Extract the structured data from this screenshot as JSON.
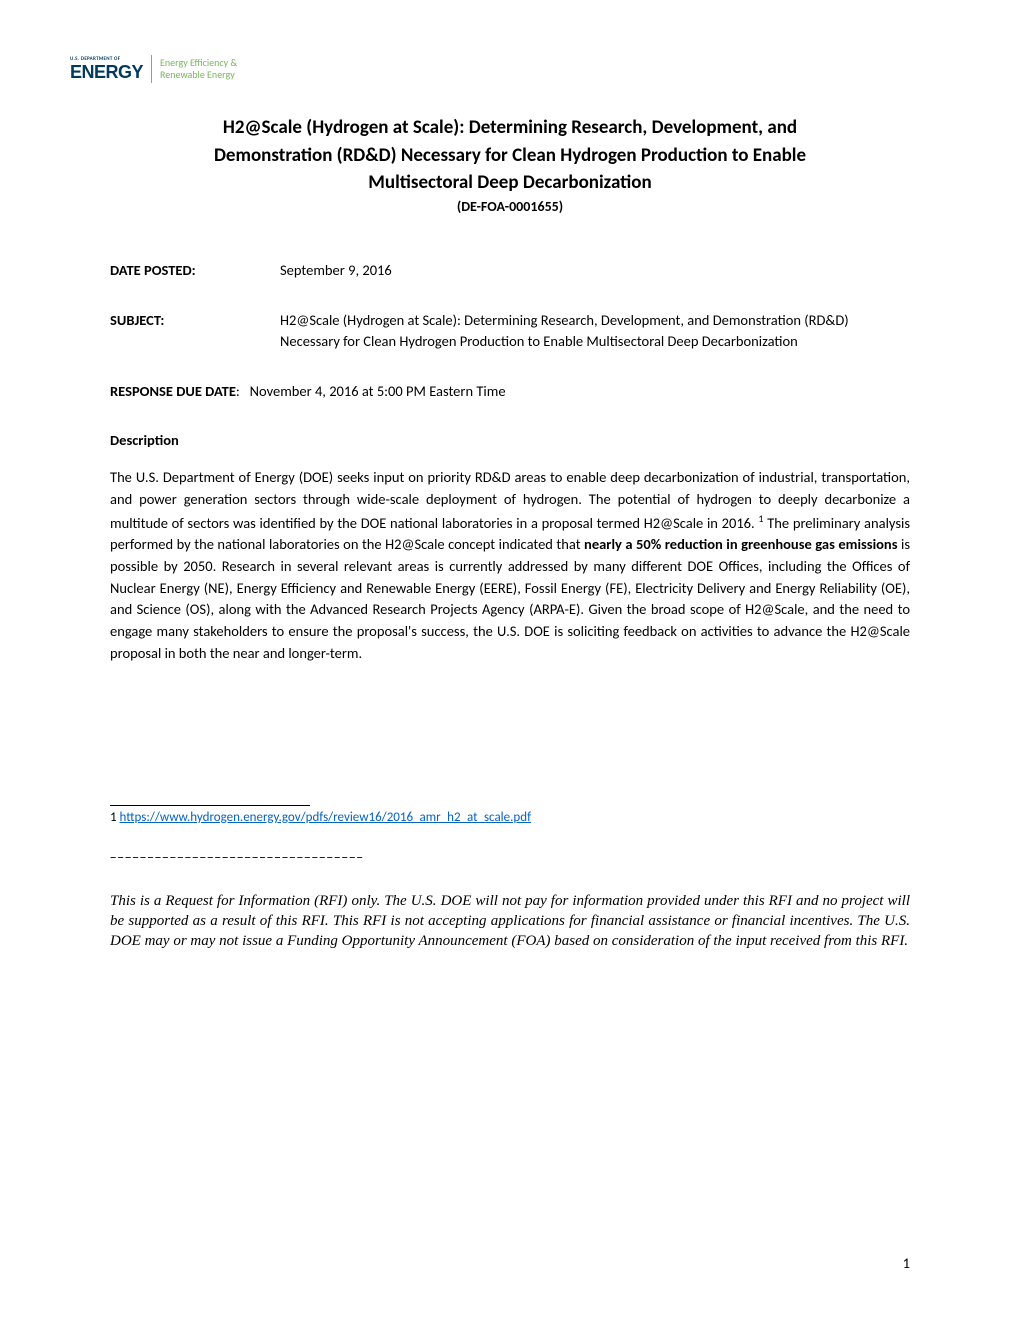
{
  "logo": {
    "dept": "U.S. DEPARTMENT OF",
    "energy": "ENERGY",
    "eere1": "Energy Efficiency &",
    "eere2": "Renewable Energy"
  },
  "title": {
    "line1": "H2@Scale (Hydrogen at Scale): Determining Research, Development, and",
    "line2": "Demonstration (RD&D) Necessary for Clean Hydrogen Production to Enable",
    "line3": "Multisectoral Deep Decarbonization",
    "code": "(DE-FOA-0001655)"
  },
  "fields": {
    "date_posted_label": "DATE POSTED:",
    "date_posted_value": "September 9, 2016",
    "subject_label": "SUBJECT:",
    "subject_value": "H2@Scale (Hydrogen at Scale): Determining Research, Development, and Demonstration (RD&D) Necessary for Clean Hydrogen Production to Enable Multisectoral Deep Decarbonization",
    "response_due_label": "RESPONSE DUE DATE",
    "response_due_colon": ":",
    "response_due_value": "November 4, 2016 at 5:00 PM Eastern Time"
  },
  "description": {
    "heading": "Description",
    "body_part1": "The U.S. Department of Energy (DOE) seeks input on priority RD&D areas to enable deep decarbonization of industrial, transportation, and power generation sectors through wide-scale deployment of hydrogen. The potential of hydrogen to deeply decarbonize a multitude of sectors was identified by the DOE national laboratories in a proposal termed H2@Scale in 2016. ",
    "sup1": "1",
    "body_part2": " The preliminary analysis performed by the national laboratories on the H2@Scale concept indicated that ",
    "bold_text": "nearly a 50% reduction in greenhouse gas emissions",
    "body_part3": " is possible by 2050. Research in several relevant areas is currently addressed by many different DOE Offices, including the Offices of Nuclear Energy (NE), Energy Efficiency and Renewable Energy (EERE), Fossil Energy (FE), Electricity Delivery and Energy Reliability (OE), and Science (OS), along with the Advanced Research Projects Agency (ARPA-E).  Given the broad scope of H2@Scale, and the need to engage many stakeholders to ensure the proposal's success, the U.S. DOE is soliciting feedback on activities to advance the H2@Scale proposal in both the near and longer-term."
  },
  "footnote": {
    "number": "1 ",
    "link_text": "https://www.hydrogen.energy.gov/pdfs/review16/2016_amr_h2_at_scale.pdf"
  },
  "separator": "__________________________________",
  "disclaimer": "This is a Request for Information (RFI) only.  The U.S. DOE will not pay for information provided under this RFI and no project will be supported as a result of this RFI.  This RFI is not accepting applications for financial assistance or financial incentives.  The U.S. DOE may or may not issue a Funding Opportunity Announcement (FOA) based on consideration of the input received from this RFI.",
  "page_number": "1"
}
